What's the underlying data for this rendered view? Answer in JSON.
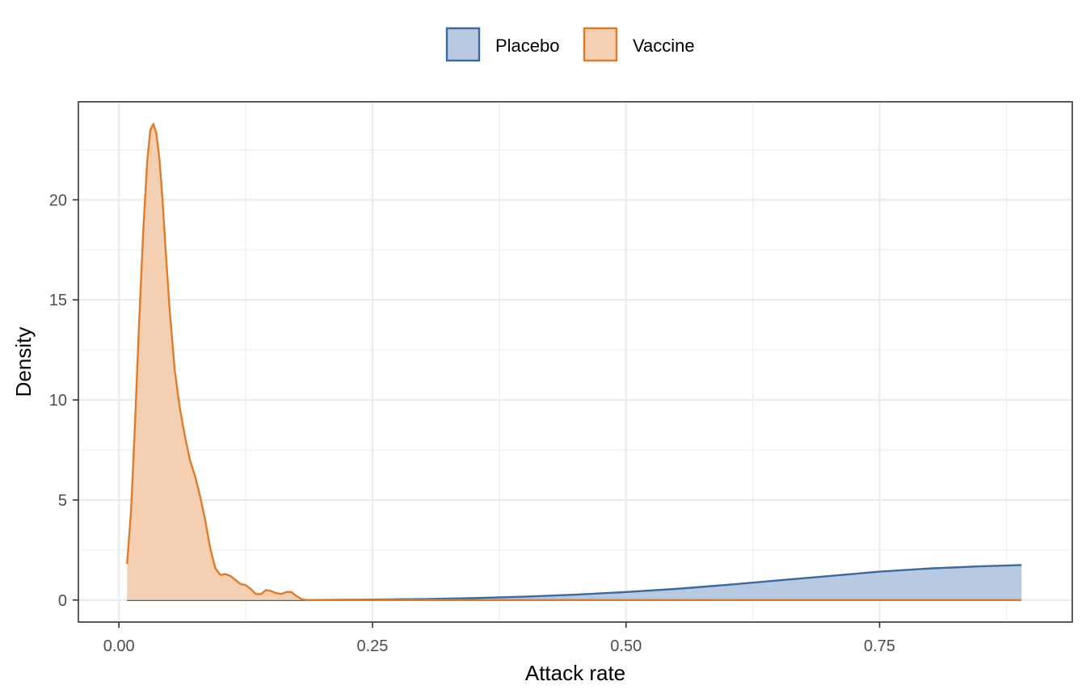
{
  "chart_data": {
    "type": "area",
    "title": "",
    "xlabel": "Attack rate",
    "ylabel": "Density",
    "xlim": [
      -0.04,
      0.94
    ],
    "ylim": [
      -1.1,
      24.9
    ],
    "x_ticks": [
      0.0,
      0.25,
      0.5,
      0.75
    ],
    "x_tick_labels": [
      "0.00",
      "0.25",
      "0.50",
      "0.75"
    ],
    "x_minor_ticks": [
      0.125,
      0.375,
      0.625,
      0.875
    ],
    "y_ticks": [
      0,
      5,
      10,
      15,
      20
    ],
    "y_tick_labels": [
      "0",
      "5",
      "10",
      "15",
      "20"
    ],
    "y_minor_ticks": [
      2.5,
      7.5,
      12.5,
      17.5,
      22.5
    ],
    "grid": true,
    "legend": {
      "position": "top",
      "direction": "horizontal"
    },
    "series": [
      {
        "name": "Placebo",
        "color": "#3b6aa0",
        "fill": "#b8c9e2",
        "points": [
          [
            0.008,
            0.0
          ],
          [
            0.1,
            0.0
          ],
          [
            0.18,
            0.0
          ],
          [
            0.25,
            0.02
          ],
          [
            0.3,
            0.05
          ],
          [
            0.35,
            0.1
          ],
          [
            0.4,
            0.17
          ],
          [
            0.45,
            0.27
          ],
          [
            0.5,
            0.4
          ],
          [
            0.55,
            0.56
          ],
          [
            0.6,
            0.76
          ],
          [
            0.65,
            0.98
          ],
          [
            0.7,
            1.2
          ],
          [
            0.75,
            1.42
          ],
          [
            0.8,
            1.58
          ],
          [
            0.85,
            1.69
          ],
          [
            0.89,
            1.75
          ]
        ]
      },
      {
        "name": "Vaccine",
        "color": "#e07b2a",
        "fill": "#f5cfb1",
        "points": [
          [
            0.008,
            1.8
          ],
          [
            0.012,
            4.5
          ],
          [
            0.016,
            9.0
          ],
          [
            0.02,
            14.0
          ],
          [
            0.024,
            18.5
          ],
          [
            0.028,
            22.0
          ],
          [
            0.031,
            23.5
          ],
          [
            0.034,
            23.8
          ],
          [
            0.037,
            23.3
          ],
          [
            0.04,
            22.0
          ],
          [
            0.043,
            20.0
          ],
          [
            0.046,
            17.5
          ],
          [
            0.05,
            14.5
          ],
          [
            0.055,
            11.5
          ],
          [
            0.06,
            9.6
          ],
          [
            0.065,
            8.2
          ],
          [
            0.07,
            7.0
          ],
          [
            0.075,
            6.2
          ],
          [
            0.08,
            5.2
          ],
          [
            0.085,
            4.0
          ],
          [
            0.09,
            2.6
          ],
          [
            0.095,
            1.6
          ],
          [
            0.1,
            1.25
          ],
          [
            0.105,
            1.3
          ],
          [
            0.11,
            1.2
          ],
          [
            0.115,
            1.0
          ],
          [
            0.12,
            0.8
          ],
          [
            0.125,
            0.75
          ],
          [
            0.13,
            0.55
          ],
          [
            0.135,
            0.3
          ],
          [
            0.14,
            0.3
          ],
          [
            0.145,
            0.5
          ],
          [
            0.15,
            0.45
          ],
          [
            0.155,
            0.35
          ],
          [
            0.16,
            0.3
          ],
          [
            0.165,
            0.4
          ],
          [
            0.17,
            0.4
          ],
          [
            0.175,
            0.2
          ],
          [
            0.18,
            0.05
          ],
          [
            0.185,
            0.0
          ],
          [
            0.25,
            0.0
          ],
          [
            0.5,
            0.0
          ],
          [
            0.75,
            0.0
          ],
          [
            0.89,
            0.0
          ]
        ]
      }
    ]
  }
}
